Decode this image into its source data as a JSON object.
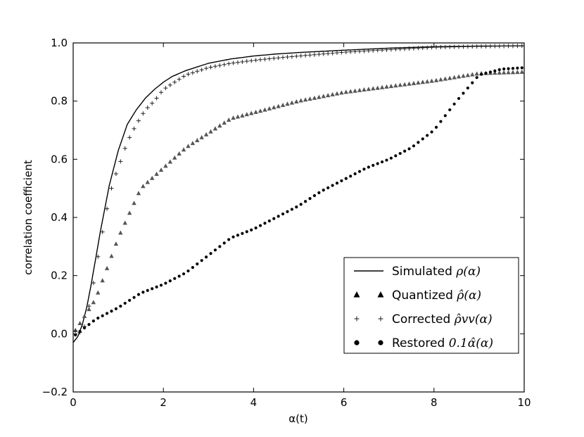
{
  "chart_data": {
    "type": "line",
    "title": "",
    "xlabel": "α(t)",
    "ylabel": "correlation coefficient",
    "xlim": [
      0,
      10
    ],
    "ylim": [
      -0.2,
      1.0
    ],
    "xticks": [
      0,
      2,
      4,
      6,
      8,
      10
    ],
    "yticks": [
      -0.2,
      0.0,
      0.2,
      0.4,
      0.6,
      0.8,
      1.0
    ],
    "xtick_labels": [
      "0",
      "2",
      "4",
      "6",
      "8",
      "10"
    ],
    "ytick_labels": [
      "−0.2",
      "0.0",
      "0.2",
      "0.4",
      "0.6",
      "0.8",
      "1.0"
    ],
    "grid": false,
    "legend_position": "lower-right",
    "series": [
      {
        "name": "Simulated ρ(α)",
        "legend_prefix": "Simulated",
        "legend_math": "ρ(α)",
        "style": "line",
        "color": "#000000",
        "x": [
          0,
          0.1,
          0.2,
          0.3,
          0.4,
          0.5,
          0.6,
          0.7,
          0.8,
          0.9,
          1.0,
          1.2,
          1.4,
          1.6,
          1.8,
          2.0,
          2.2,
          2.5,
          2.8,
          3.0,
          3.5,
          4.0,
          4.5,
          5.0,
          6.0,
          7.0,
          8.0,
          9.0,
          10.0
        ],
        "y": [
          -0.03,
          -0.01,
          0.03,
          0.09,
          0.17,
          0.26,
          0.35,
          0.43,
          0.51,
          0.57,
          0.63,
          0.72,
          0.77,
          0.81,
          0.84,
          0.865,
          0.885,
          0.905,
          0.92,
          0.93,
          0.945,
          0.955,
          0.962,
          0.967,
          0.975,
          0.982,
          0.987,
          0.989,
          0.99
        ]
      },
      {
        "name": "Quantized ρ̂(α)",
        "legend_prefix": "Quantized",
        "legend_math": "ρ̂(α)",
        "style": "triangle",
        "color": "#555555",
        "x": [
          0,
          0.5,
          1.0,
          1.5,
          2.0,
          2.5,
          3.0,
          3.5,
          4.0,
          5.0,
          6.0,
          7.0,
          8.0,
          9.0,
          10.0
        ],
        "y": [
          0.0,
          0.12,
          0.33,
          0.5,
          0.57,
          0.64,
          0.69,
          0.74,
          0.76,
          0.8,
          0.83,
          0.85,
          0.87,
          0.895,
          0.9
        ]
      },
      {
        "name": "Corrected ρ̂vv(α)",
        "legend_prefix": "Corrected",
        "legend_math": "ρ̂vv(α)",
        "style": "plus",
        "color": "#222222",
        "x": [
          0,
          0.1,
          0.2,
          0.3,
          0.4,
          0.5,
          0.6,
          0.7,
          0.8,
          0.9,
          1.0,
          1.2,
          1.4,
          1.6,
          1.8,
          2.0,
          2.2,
          2.5,
          2.8,
          3.0,
          3.5,
          4.0,
          4.5,
          5.0,
          6.0,
          7.0,
          8.0,
          9.0,
          10.0
        ],
        "y": [
          0.0,
          0.02,
          -0.01,
          0.06,
          0.13,
          0.22,
          0.31,
          0.39,
          0.47,
          0.53,
          0.57,
          0.66,
          0.72,
          0.77,
          0.8,
          0.84,
          0.86,
          0.89,
          0.905,
          0.915,
          0.93,
          0.94,
          0.948,
          0.955,
          0.968,
          0.977,
          0.985,
          0.988,
          0.99
        ]
      },
      {
        "name": "Restored 0.1α̂(α)",
        "legend_prefix": "Restored",
        "legend_math": "0.1α̂(α)",
        "style": "circle",
        "color": "#000000",
        "x": [
          0,
          0.5,
          1.0,
          1.5,
          2.0,
          2.5,
          3.0,
          3.5,
          4.0,
          4.5,
          5.0,
          5.5,
          6.0,
          6.5,
          7.0,
          7.5,
          8.0,
          8.5,
          9.0,
          9.5,
          10.0
        ],
        "y": [
          -0.01,
          0.05,
          0.09,
          0.14,
          0.17,
          0.21,
          0.27,
          0.33,
          0.36,
          0.4,
          0.44,
          0.49,
          0.53,
          0.57,
          0.6,
          0.64,
          0.7,
          0.8,
          0.89,
          0.91,
          0.915
        ]
      }
    ]
  }
}
